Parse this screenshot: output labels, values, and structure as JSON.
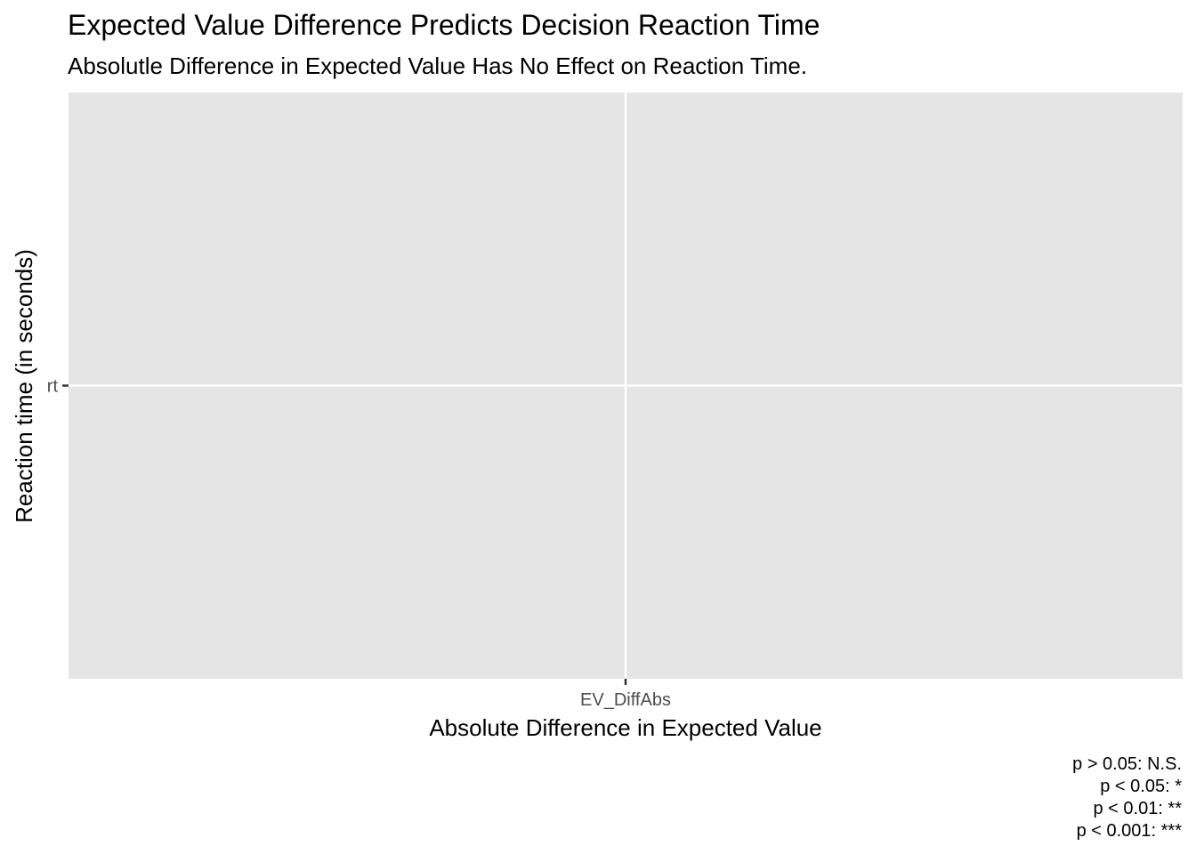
{
  "chart_data": {
    "type": "scatter",
    "title": "Expected Value Difference Predicts Decision Reaction Time",
    "subtitle": "Absolutle Difference in Expected Value Has No Effect on Reaction Time.",
    "xlabel": "Absolute Difference in Expected Value",
    "ylabel": "Reaction time (in seconds)",
    "x_categories": [
      "EV_DiffAbs"
    ],
    "y_categories": [
      "rt"
    ],
    "series": [],
    "grid": true,
    "caption_lines": [
      "p > 0.05: N.S.",
      "p < 0.05: *",
      "p < 0.01: **",
      "p < 0.001: ***"
    ]
  },
  "colors": {
    "panel_background": "#e5e5e5",
    "grid_line": "#ffffff",
    "tick_mark": "#333333",
    "tick_label": "#4d4d4d"
  }
}
